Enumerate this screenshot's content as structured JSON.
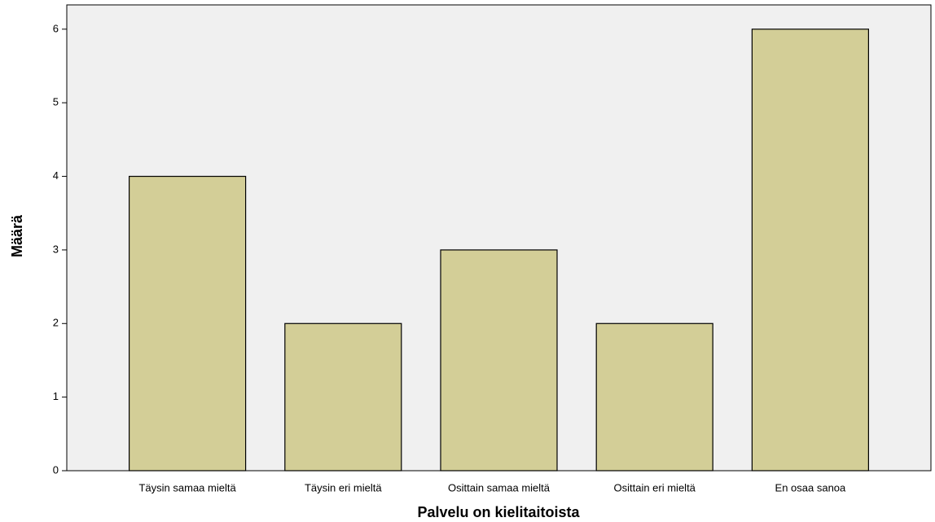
{
  "chart_data": {
    "type": "bar",
    "x_label": "Palvelu on kielitaitoista",
    "y_label": "Määrä",
    "categories": [
      "Täysin samaa mieltä",
      "Täysin eri mieltä",
      "Osittain samaa mieltä",
      "Osittain eri mieltä",
      "En osaa sanoa"
    ],
    "values": [
      4,
      2,
      3,
      2,
      6
    ],
    "color": "#d3ce97",
    "ylim": [
      0,
      6.33
    ],
    "yticks": [
      0,
      1,
      2,
      3,
      4,
      5,
      6
    ],
    "grid": false
  }
}
